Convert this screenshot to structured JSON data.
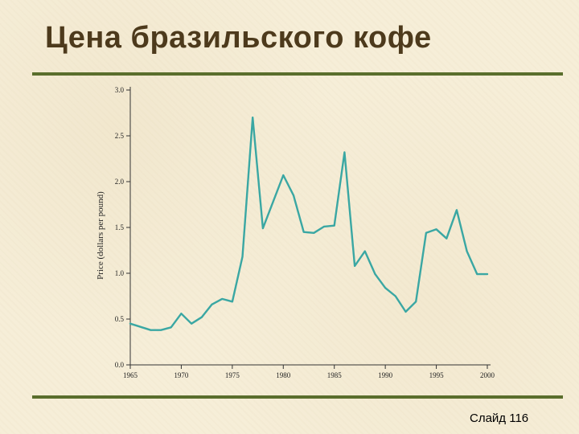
{
  "slide": {
    "title": "Цена бразильского кофе",
    "number_label": "Слайд 116"
  },
  "colors": {
    "accent_rule": "#5a6e2c",
    "title": "#4d3a1c",
    "series_line": "#3aa7a3"
  },
  "chart_data": {
    "type": "line",
    "title": "",
    "xlabel": "",
    "ylabel": "Price (dollars per pound)",
    "xlim": [
      1965,
      2000
    ],
    "ylim": [
      0.0,
      3.0
    ],
    "x_ticks": [
      "1965",
      "1970",
      "1975",
      "1980",
      "1985",
      "1990",
      "1995",
      "2000"
    ],
    "y_ticks": [
      "0.0",
      "0.5",
      "1.0",
      "1.5",
      "2.0",
      "2.5",
      "3.0"
    ],
    "grid": false,
    "series": [
      {
        "x": [
          1965,
          1967,
          1968,
          1969,
          1970,
          1971,
          1972,
          1973,
          1974,
          1975,
          1976,
          1977,
          1978,
          1980,
          1981,
          1982,
          1983,
          1984,
          1985,
          1986,
          1987,
          1988,
          1989,
          1990,
          1991,
          1992,
          1993,
          1994,
          1995,
          1996,
          1997,
          1998,
          1999,
          2000
        ],
        "y": [
          0.45,
          0.38,
          0.38,
          0.41,
          0.56,
          0.45,
          0.52,
          0.66,
          0.72,
          0.69,
          1.18,
          2.7,
          1.49,
          2.07,
          1.85,
          1.45,
          1.44,
          1.51,
          1.52,
          2.32,
          1.08,
          1.24,
          0.99,
          0.84,
          0.75,
          0.58,
          0.69,
          1.44,
          1.48,
          1.38,
          1.69,
          1.24,
          0.99,
          0.99
        ]
      }
    ]
  }
}
